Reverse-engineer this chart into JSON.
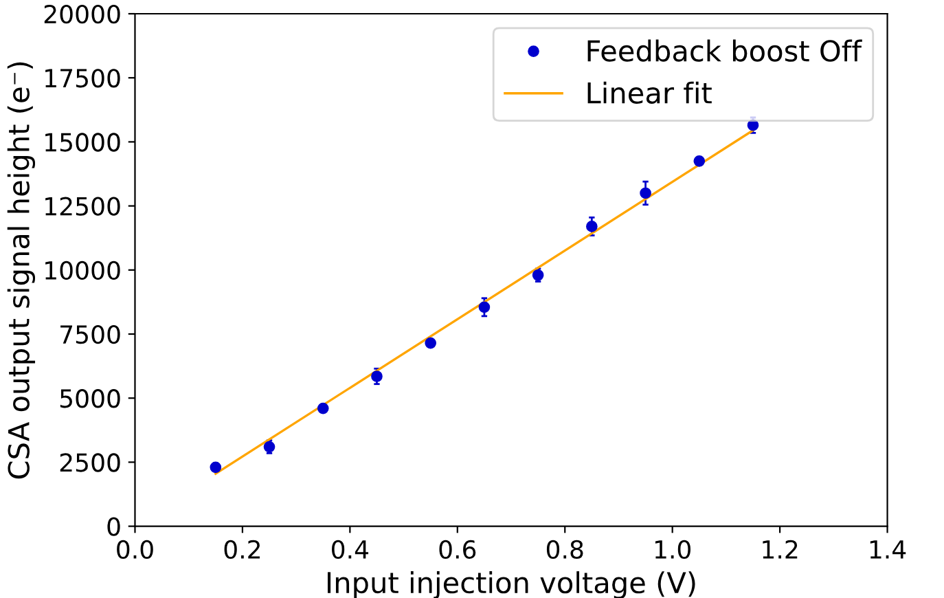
{
  "chart_data": {
    "type": "scatter",
    "xlabel": "Input injection voltage (V)",
    "ylabel": "CSA output signal height (e⁻)",
    "x": [
      0.15,
      0.25,
      0.35,
      0.45,
      0.55,
      0.65,
      0.75,
      0.85,
      0.95,
      1.05,
      1.15
    ],
    "series": [
      {
        "name": "Feedback boost Off",
        "color": "#0000cd",
        "marker": "circle",
        "values": [
          2300,
          3100,
          4600,
          5850,
          7150,
          8550,
          9800,
          11700,
          13000,
          14250,
          15650
        ],
        "errors": [
          150,
          250,
          150,
          300,
          150,
          350,
          250,
          350,
          450,
          150,
          300
        ]
      },
      {
        "name": "Linear fit",
        "type": "line",
        "color": "#ffa500",
        "x": [
          0.15,
          1.15
        ],
        "values": [
          2050,
          15450
        ]
      }
    ],
    "xlim": [
      0.0,
      1.4
    ],
    "xticks": [
      {
        "value": 0,
        "label": "0.0"
      },
      0.2,
      0.4,
      0.6,
      0.8,
      {
        "value": 1,
        "label": "1.0"
      },
      1.2,
      1.4
    ],
    "ylim": [
      0,
      20000
    ],
    "yticks": [
      0,
      2500,
      5000,
      7500,
      10000,
      12500,
      15000,
      17500,
      20000
    ],
    "legend": "top right",
    "grid": false
  }
}
